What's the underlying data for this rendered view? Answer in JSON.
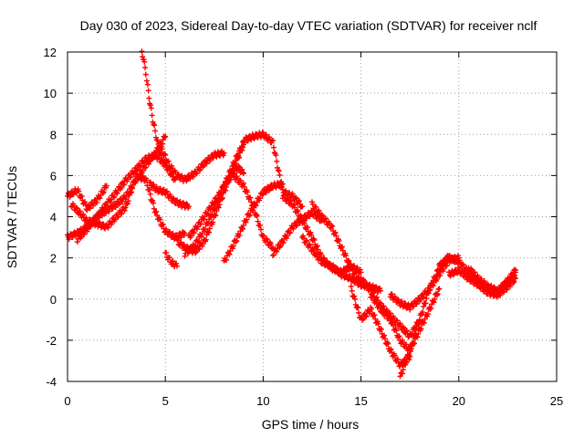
{
  "chart_data": {
    "type": "scatter",
    "title": "Day 030 of 2023, Sidereal Day-to-day VTEC variation (SDTVAR) for receiver nclf",
    "xlabel": "GPS time / hours",
    "ylabel": "SDTVAR / TECUs",
    "xlim": [
      0,
      25
    ],
    "ylim": [
      -4,
      12
    ],
    "xticks": [
      "0",
      "5",
      "10",
      "15",
      "20",
      "25"
    ],
    "yticks": [
      "-4",
      "-2",
      "0",
      "2",
      "4",
      "6",
      "8",
      "10",
      "12"
    ],
    "grid": true,
    "marker": "+",
    "color": "#ff0000",
    "series": [
      {
        "x": [
          0.0,
          0.5,
          1.0,
          1.5,
          2.0
        ],
        "y": [
          5.0,
          5.3,
          4.4,
          4.8,
          5.5
        ]
      },
      {
        "x": [
          0.0,
          0.5,
          1.0,
          1.5,
          2.0,
          2.5,
          3.0,
          3.5,
          4.0,
          4.5,
          5.0
        ],
        "y": [
          3.0,
          3.2,
          3.5,
          4.0,
          4.3,
          4.6,
          5.0,
          5.8,
          6.5,
          7.1,
          7.9
        ]
      },
      {
        "x": [
          0.2,
          1.0,
          2.0,
          3.0,
          3.5,
          4.0,
          4.5,
          5.0,
          5.5,
          6.0
        ],
        "y": [
          4.6,
          3.8,
          3.5,
          4.5,
          6.0,
          5.8,
          4.2,
          3.3,
          3.0,
          3.2
        ]
      },
      {
        "x": [
          0.5,
          1.0,
          1.5,
          2.0,
          2.5,
          3.0,
          3.5,
          4.0,
          4.5,
          5.0,
          5.5
        ],
        "y": [
          2.9,
          3.4,
          4.0,
          4.6,
          5.2,
          5.8,
          6.3,
          6.8,
          7.0,
          6.5,
          5.8
        ]
      },
      {
        "x": [
          3.8,
          3.9,
          4.0,
          4.1,
          4.2,
          4.4,
          4.6,
          4.8,
          5.0
        ],
        "y": [
          12.0,
          11.6,
          11.0,
          10.3,
          9.6,
          8.5,
          7.6,
          6.9,
          6.5
        ]
      },
      {
        "x": [
          4.2,
          4.6,
          5.0,
          5.4,
          5.8,
          6.2
        ],
        "y": [
          5.6,
          5.3,
          5.2,
          4.8,
          4.6,
          4.5
        ]
      },
      {
        "x": [
          5.0,
          5.3,
          5.6
        ],
        "y": [
          2.2,
          1.8,
          1.6
        ]
      },
      {
        "x": [
          4.8,
          5.2,
          5.6,
          6.0,
          6.5,
          7.0,
          7.5,
          8.0
        ],
        "y": [
          7.3,
          6.5,
          6.0,
          5.8,
          6.1,
          6.6,
          7.0,
          7.1
        ]
      },
      {
        "x": [
          5.6,
          6.0,
          6.5,
          7.0,
          7.5,
          8.0,
          8.5,
          9.0
        ],
        "y": [
          2.8,
          2.5,
          2.3,
          2.8,
          4.0,
          5.2,
          6.4,
          7.5
        ]
      },
      {
        "x": [
          6.0,
          6.5,
          7.0,
          7.5,
          8.0,
          8.5,
          9.0
        ],
        "y": [
          2.2,
          2.6,
          3.4,
          4.4,
          5.5,
          6.6,
          7.6
        ]
      },
      {
        "x": [
          6.2,
          6.7,
          7.2,
          7.7,
          8.2,
          8.7,
          9.0
        ],
        "y": [
          3.0,
          3.6,
          4.3,
          5.0,
          5.8,
          6.4,
          6.1
        ]
      },
      {
        "x": [
          8.0,
          8.4,
          8.8,
          9.2,
          9.6,
          10.0,
          10.5,
          11.0
        ],
        "y": [
          1.8,
          2.5,
          3.2,
          4.0,
          4.6,
          5.2,
          5.5,
          5.6
        ]
      },
      {
        "x": [
          8.5,
          9.0,
          9.5,
          10.0,
          10.5
        ],
        "y": [
          6.0,
          5.5,
          4.5,
          3.0,
          2.5
        ]
      },
      {
        "x": [
          9.0,
          9.5,
          10.0,
          10.5,
          11.0,
          11.5,
          12.0
        ],
        "y": [
          7.7,
          7.9,
          8.0,
          7.6,
          5.2,
          5.0,
          4.5
        ]
      },
      {
        "x": [
          10.5,
          11.0,
          11.5,
          12.0,
          12.5,
          13.0
        ],
        "y": [
          2.2,
          2.8,
          3.5,
          3.9,
          4.2,
          3.8
        ]
      },
      {
        "x": [
          11.0,
          11.5,
          12.0,
          12.5,
          13.0,
          13.5,
          14.0,
          14.5,
          15.0
        ],
        "y": [
          5.0,
          4.6,
          3.8,
          3.0,
          2.0,
          1.5,
          1.3,
          1.6,
          1.3
        ]
      },
      {
        "x": [
          12.0,
          12.5,
          13.0,
          13.5,
          14.0,
          14.5,
          15.0,
          15.5,
          16.0
        ],
        "y": [
          3.0,
          2.4,
          1.8,
          1.6,
          1.2,
          1.0,
          0.7,
          0.6,
          0.4
        ]
      },
      {
        "x": [
          12.5,
          13.0,
          13.5,
          14.0,
          14.5,
          15.0
        ],
        "y": [
          4.6,
          4.0,
          3.5,
          2.5,
          1.5,
          0.8
        ]
      },
      {
        "x": [
          14.5,
          15.0,
          15.5,
          16.0,
          16.5,
          17.0,
          17.5
        ],
        "y": [
          0.5,
          -1.0,
          -0.5,
          -1.5,
          -2.5,
          -3.2,
          -2.8
        ]
      },
      {
        "x": [
          15.0,
          15.5,
          16.0,
          16.5,
          17.0,
          17.5,
          18.0
        ],
        "y": [
          1.0,
          0.4,
          -0.3,
          -0.8,
          -1.3,
          -1.8,
          -1.0
        ]
      },
      {
        "x": [
          15.5,
          16.0,
          16.5,
          17.0,
          17.5,
          18.0,
          18.5,
          19.0
        ],
        "y": [
          0.2,
          -0.5,
          -1.0,
          -2.0,
          -2.5,
          -1.5,
          -0.5,
          0.5
        ]
      },
      {
        "x": [
          16.5,
          17.0,
          17.5,
          18.0,
          18.5,
          19.0,
          19.5,
          20.0
        ],
        "y": [
          0.2,
          -0.2,
          -0.4,
          0.0,
          0.5,
          1.2,
          1.9,
          2.0
        ]
      },
      {
        "x": [
          17.0,
          17.5,
          18.0,
          18.5,
          19.0,
          19.5
        ],
        "y": [
          -3.8,
          -2.5,
          -1.0,
          0.5,
          1.5,
          2.1
        ]
      },
      {
        "x": [
          19.0,
          19.5,
          20.0,
          20.5,
          21.0,
          21.5,
          22.0,
          22.5,
          22.9
        ],
        "y": [
          1.6,
          2.0,
          1.8,
          1.3,
          0.8,
          0.5,
          0.3,
          0.8,
          1.3
        ]
      },
      {
        "x": [
          19.5,
          20.0,
          20.5,
          21.0,
          21.5,
          22.0,
          22.5,
          22.9
        ],
        "y": [
          1.2,
          1.4,
          1.0,
          0.7,
          0.3,
          0.2,
          0.6,
          1.0
        ]
      },
      {
        "x": [
          20.5,
          21.0,
          21.5,
          22.0,
          22.5,
          22.9
        ],
        "y": [
          1.5,
          1.0,
          0.6,
          0.4,
          0.9,
          1.4
        ]
      }
    ]
  }
}
